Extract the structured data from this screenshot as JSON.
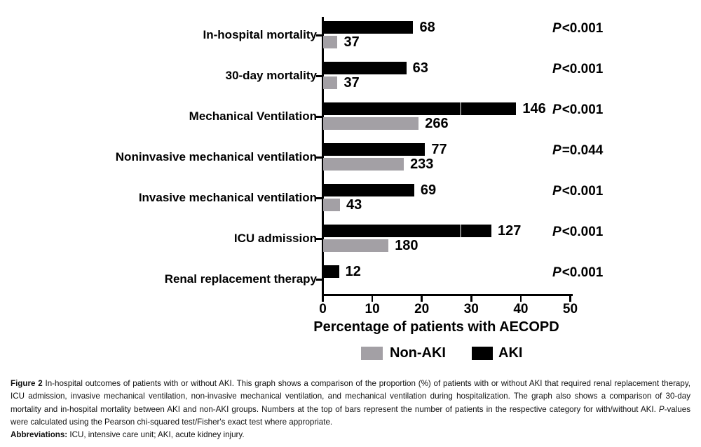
{
  "figure": {
    "chart_data": {
      "type": "bar",
      "orientation": "horizontal",
      "title": "",
      "xlabel": "Percentage of patients with AECOPD",
      "xlim": [
        0,
        50
      ],
      "xticks": [
        0,
        10,
        20,
        30,
        40,
        50
      ],
      "grid": false,
      "legend_position": "bottom",
      "categories": [
        "In-hospital mortality",
        "30-day mortality",
        "Mechanical Ventilation",
        "Noninvasive mechanical ventilation",
        "Invasive mechanical ventilation",
        "ICU admission",
        "Renal replacement therapy"
      ],
      "series": [
        {
          "name": "AKI",
          "color": "#000000",
          "counts": [
            68,
            63,
            146,
            77,
            69,
            127,
            12
          ],
          "percent": [
            18.2,
            16.8,
            39.0,
            20.6,
            18.4,
            34.0,
            3.2
          ],
          "seam_percent": [
            null,
            null,
            27.8,
            null,
            null,
            27.8,
            null
          ]
        },
        {
          "name": "Non-AKI",
          "color": "#a3a0a5",
          "counts": [
            37,
            37,
            266,
            233,
            43,
            180,
            null
          ],
          "percent": [
            2.9,
            2.9,
            19.3,
            16.3,
            3.4,
            13.2,
            0
          ],
          "seam_percent": [
            null,
            null,
            null,
            null,
            null,
            null,
            null
          ]
        }
      ],
      "p_values": [
        "P<0.001",
        "P<0.001",
        "P<0.001",
        "P=0.044",
        "P<0.001",
        "P<0.001",
        "P<0.001"
      ],
      "legend": [
        {
          "name": "Non-AKI",
          "color": "#a3a0a5"
        },
        {
          "name": "AKI",
          "color": "#000000"
        }
      ]
    },
    "caption": {
      "parts": [
        {
          "text": "Figure 2",
          "style": "bold"
        },
        {
          "text": " In-hospital outcomes of patients with or without AKI. This graph shows a comparison of the proportion (%) of patients with or without AKI that required renal replacement therapy, ICU admission, invasive mechanical ventilation, non-invasive mechanical ventilation, and mechanical ventilation during hospitalization. The graph also shows a comparison of 30-day mortality and in-hospital mortality between AKI and non-AKI groups. Numbers at the top of bars represent the number of patients in the respective category for with/without AKI. ",
          "style": "normal"
        },
        {
          "text": "P",
          "style": "italic"
        },
        {
          "text": "-values were calculated using the Pearson chi-squared test/Fisher's exact test where appropriate.",
          "style": "normal"
        }
      ],
      "abbreviations": [
        {
          "text": "Abbreviations:",
          "style": "bold"
        },
        {
          "text": " ICU, intensive care unit; AKI, acute kidney injury.",
          "style": "normal"
        }
      ]
    }
  }
}
